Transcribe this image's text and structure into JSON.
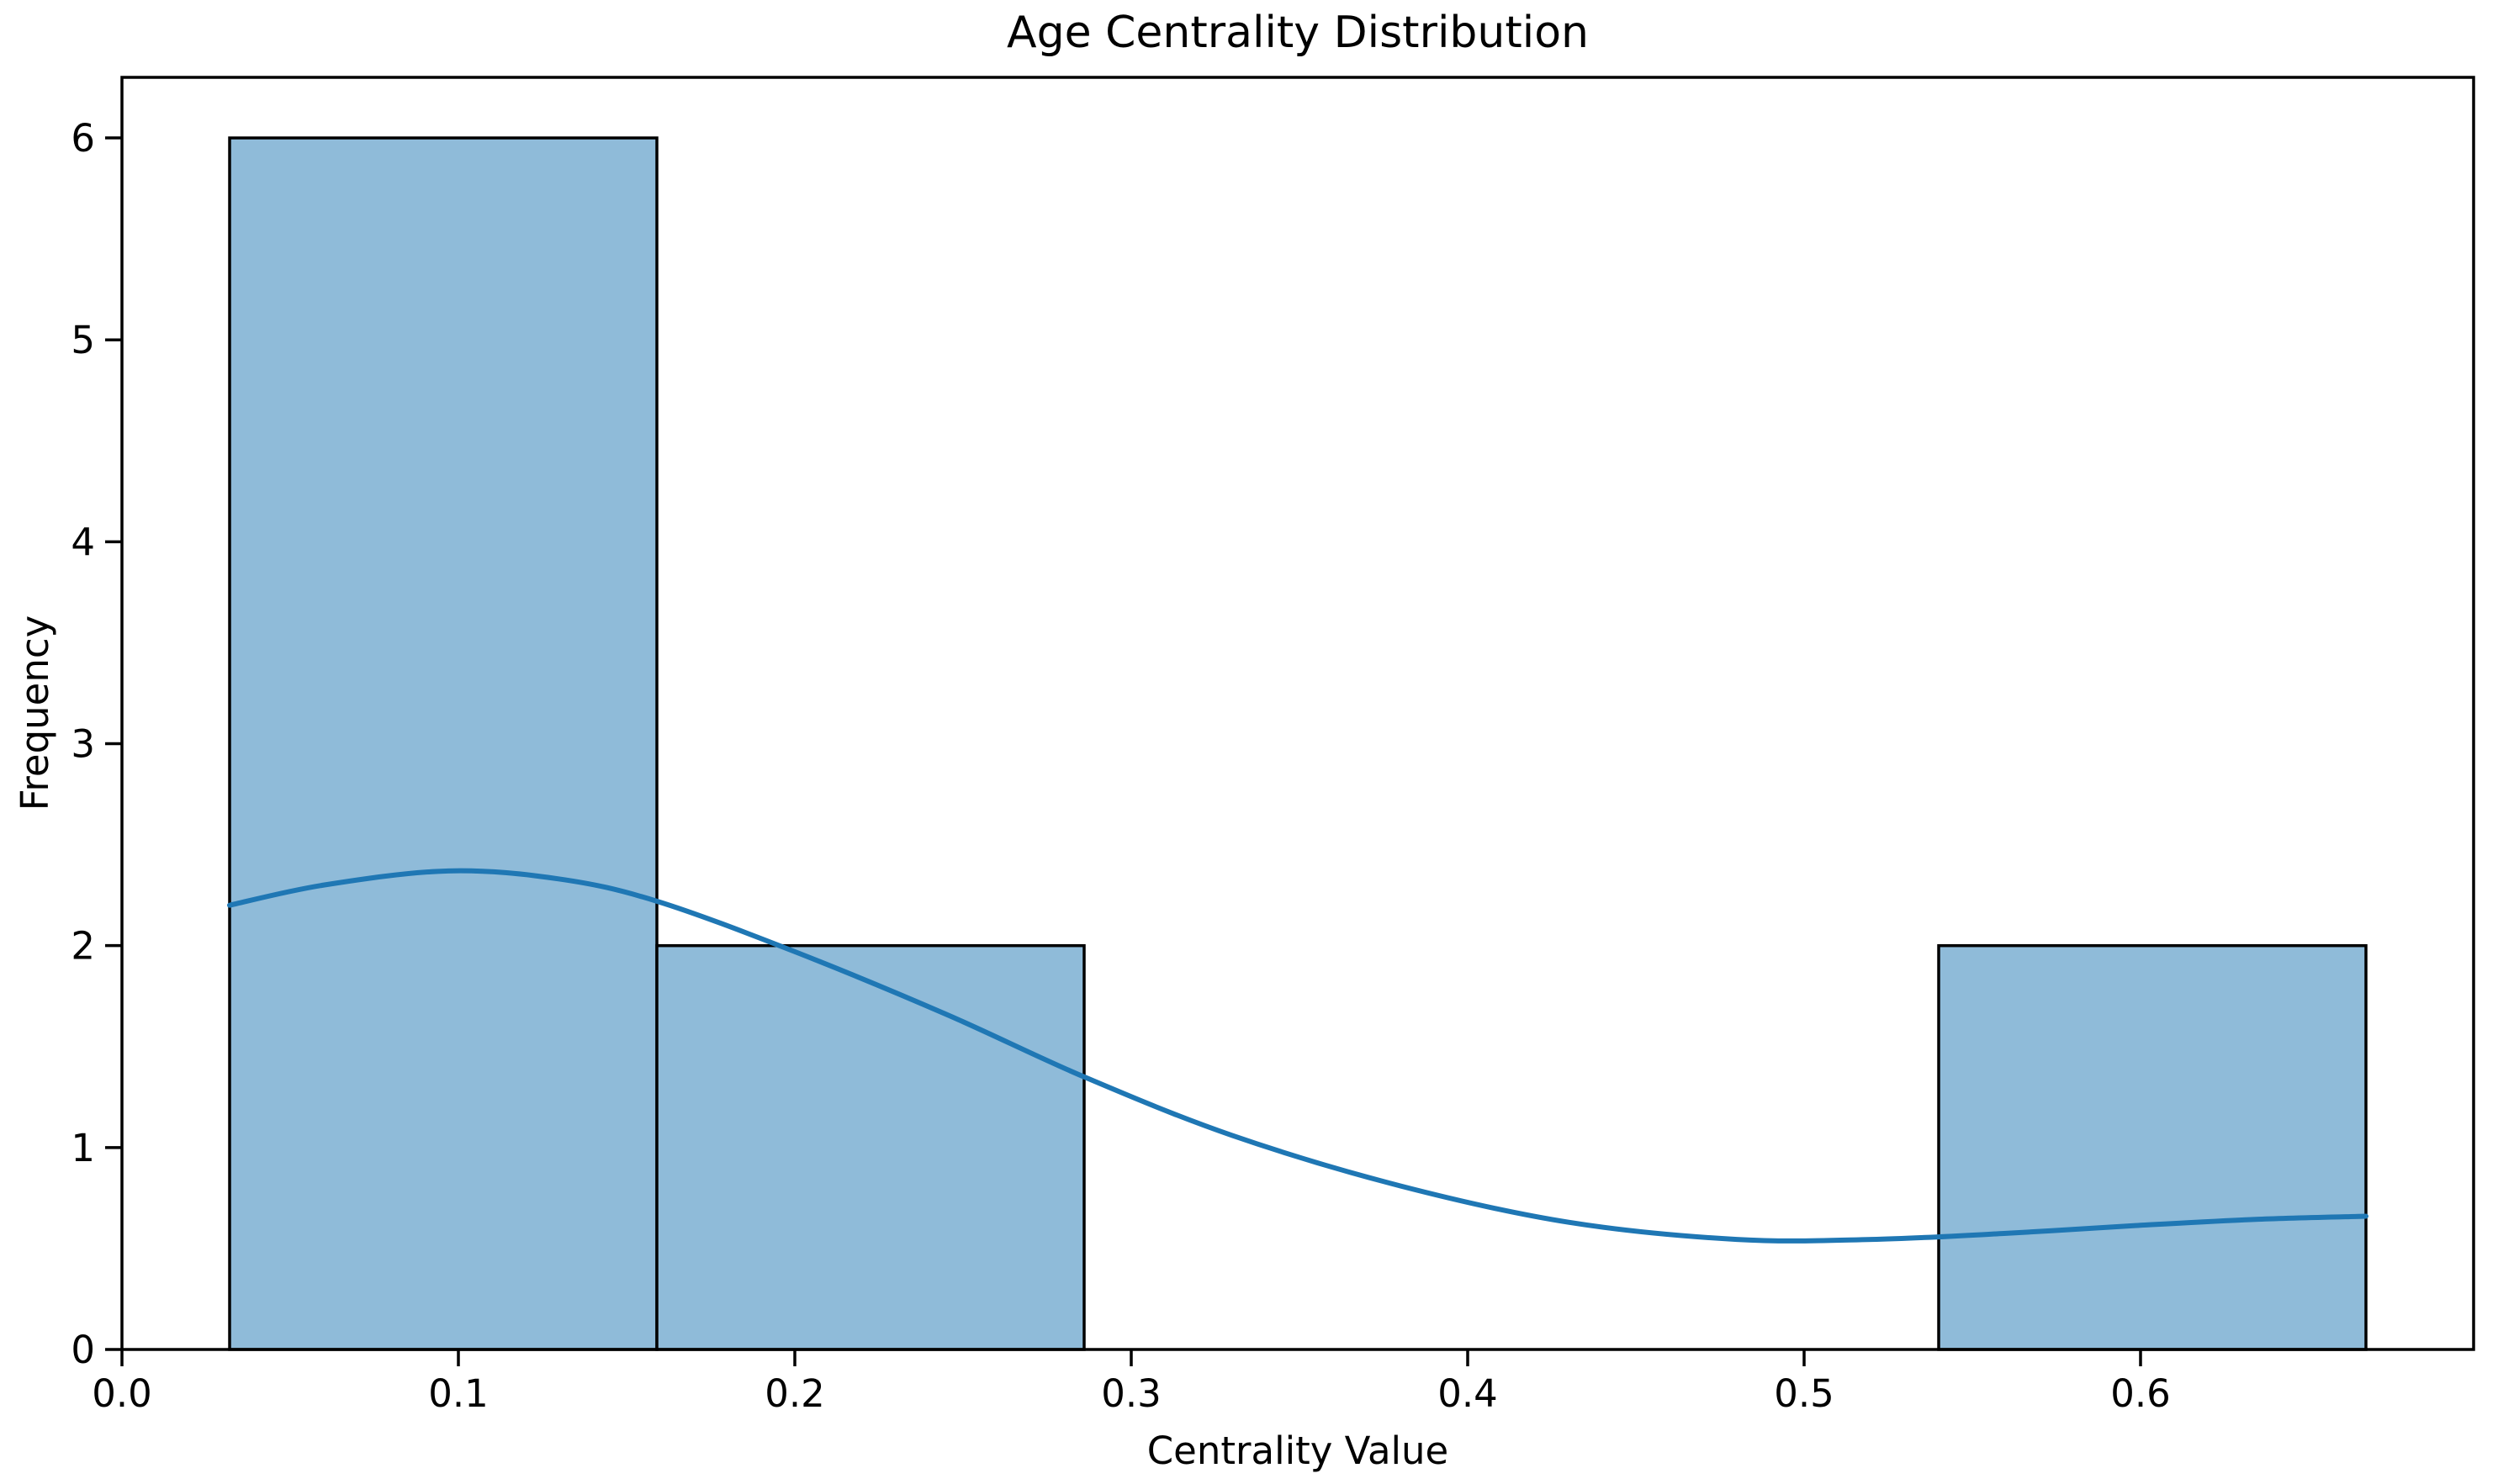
{
  "chart_data": {
    "type": "bar",
    "subtype": "histogram_with_kde",
    "title": "Age Centrality Distribution",
    "xlabel": "Centrality Value",
    "ylabel": "Frequency",
    "xlim": [
      0.0,
      0.699
    ],
    "ylim": [
      0.0,
      6.3
    ],
    "x_ticks": [
      0.0,
      0.1,
      0.2,
      0.3,
      0.4,
      0.5,
      0.6
    ],
    "x_tick_labels": [
      "0.0",
      "0.1",
      "0.2",
      "0.3",
      "0.4",
      "0.5",
      "0.6"
    ],
    "y_ticks": [
      0,
      1,
      2,
      3,
      4,
      5,
      6
    ],
    "y_tick_labels": [
      "0",
      "1",
      "2",
      "3",
      "4",
      "5",
      "6"
    ],
    "grid": false,
    "legend": false,
    "histogram": {
      "bin_edges": [
        0.032,
        0.159,
        0.286,
        0.413,
        0.54,
        0.667
      ],
      "counts": [
        6,
        2,
        0,
        0,
        2
      ]
    },
    "kde_points": [
      [
        0.032,
        2.2
      ],
      [
        0.06,
        2.3
      ],
      [
        0.097,
        2.37
      ],
      [
        0.13,
        2.33
      ],
      [
        0.159,
        2.22
      ],
      [
        0.2,
        1.97
      ],
      [
        0.245,
        1.66
      ],
      [
        0.286,
        1.35
      ],
      [
        0.33,
        1.06
      ],
      [
        0.38,
        0.81
      ],
      [
        0.43,
        0.63
      ],
      [
        0.48,
        0.545
      ],
      [
        0.52,
        0.545
      ],
      [
        0.56,
        0.575
      ],
      [
        0.6,
        0.615
      ],
      [
        0.635,
        0.645
      ],
      [
        0.667,
        0.66
      ]
    ],
    "colors": {
      "bar_fill": "#8fbbd9",
      "bar_edge": "#000000",
      "kde_line": "#1f77b4",
      "background": "#ffffff",
      "text": "#000000",
      "spine": "#000000"
    }
  }
}
